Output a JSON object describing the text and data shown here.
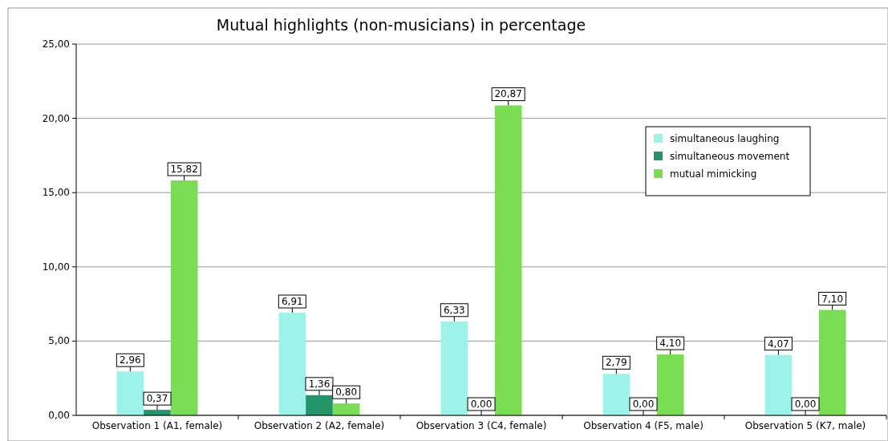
{
  "chart_data": {
    "type": "bar",
    "title": "Mutual highlights (non-musicians) in percentage",
    "categories": [
      "Observation 1 (A1, female)",
      "Observation 2 (A2, female)",
      "Observation 3 (C4, female)",
      "Observation 4 (F5, male)",
      "Observation 5 (K7, male)"
    ],
    "series": [
      {
        "name": "simultaneous laughing",
        "color": "#9ef3e8",
        "values": [
          2.96,
          6.91,
          6.33,
          2.79,
          4.07
        ],
        "value_labels": [
          "2,96",
          "6,91",
          "6,33",
          "2,79",
          "4,07"
        ]
      },
      {
        "name": "simultaneous movement",
        "color": "#23956a",
        "values": [
          0.37,
          1.36,
          0,
          0,
          0
        ],
        "value_labels": [
          "0,37",
          "1,36",
          "0,00",
          "0,00",
          "0,00"
        ]
      },
      {
        "name": "mutual mimicking",
        "color": "#7ade55",
        "values": [
          15.82,
          0.8,
          20.87,
          4.1,
          7.1
        ],
        "value_labels": [
          "15,82",
          "0,80",
          "20,87",
          "4,10",
          "7,10"
        ]
      }
    ],
    "ylim": [
      0,
      25
    ],
    "yticks": [
      {
        "value": 0,
        "label": "0,00"
      },
      {
        "value": 5,
        "label": "5,00"
      },
      {
        "value": 10,
        "label": "10,00"
      },
      {
        "value": 15,
        "label": "15,00"
      },
      {
        "value": 20,
        "label": "20,00"
      },
      {
        "value": 25,
        "label": "25,00"
      }
    ],
    "grid": "y",
    "legend": "top right"
  }
}
